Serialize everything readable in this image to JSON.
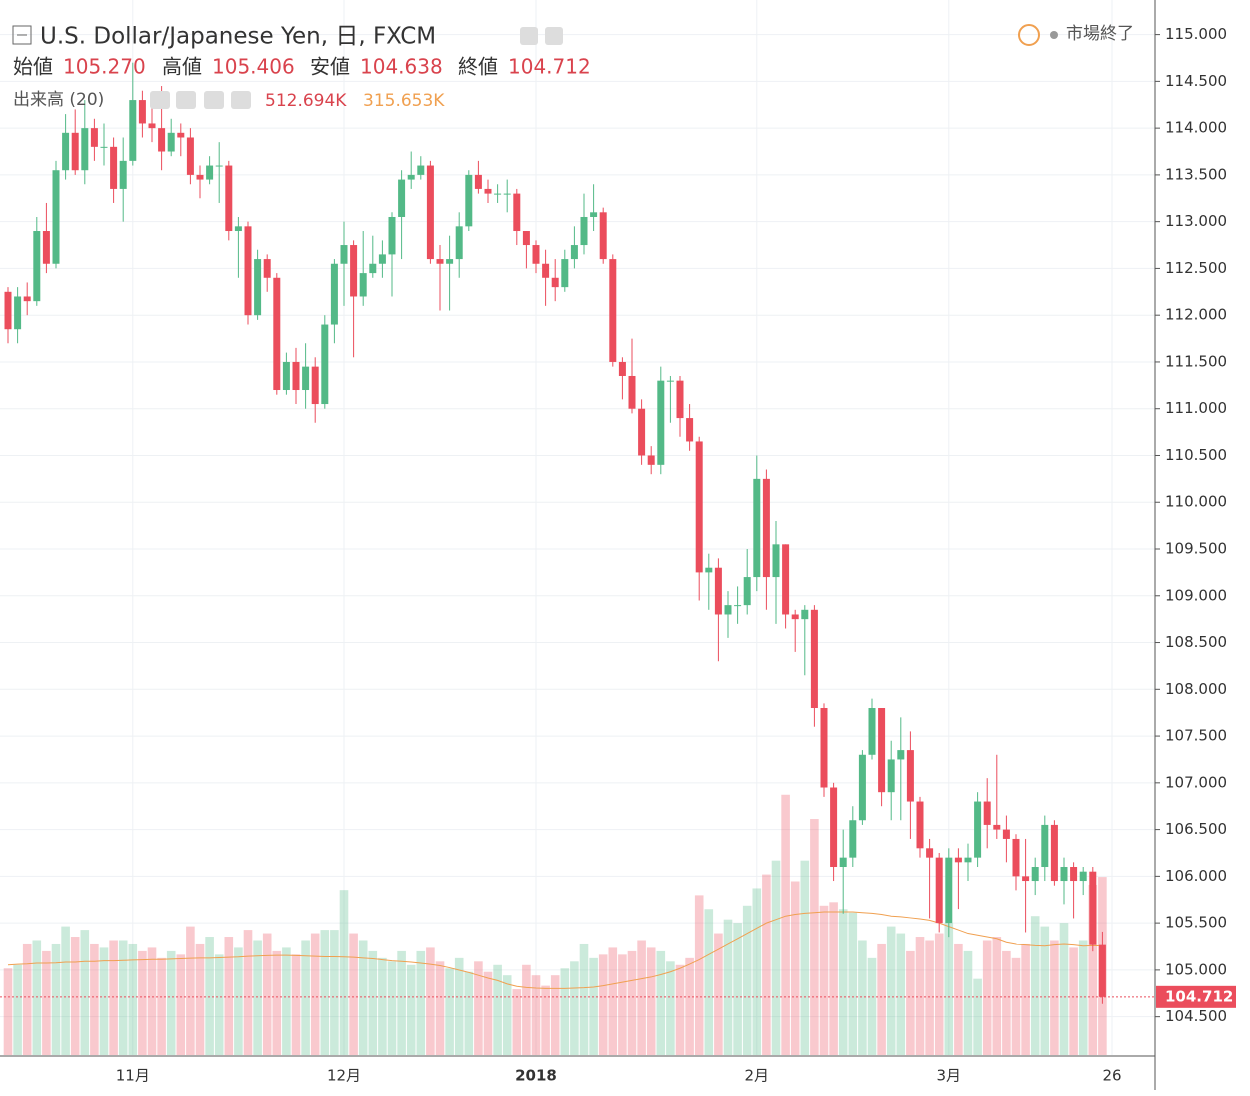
{
  "chart_data": {
    "type": "candlestick",
    "title": "U.S. Dollar/Japanese Yen, 日, FXCM",
    "status": "市場終了",
    "categories": [
      null,
      null,
      null,
      null,
      null,
      null,
      null,
      null,
      null,
      null,
      null,
      null,
      null,
      "11月",
      null,
      null,
      null,
      null,
      null,
      null,
      null,
      null,
      null,
      null,
      null,
      null,
      null,
      null,
      null,
      null,
      null,
      null,
      null,
      null,
      null,
      "12月",
      null,
      null,
      null,
      null,
      null,
      null,
      null,
      null,
      null,
      null,
      null,
      null,
      null,
      null,
      null,
      null,
      null,
      null,
      null,
      "2018",
      null,
      null,
      null,
      null,
      null,
      null,
      null,
      null,
      null,
      null,
      null,
      null,
      null,
      null,
      null,
      null,
      null,
      null,
      null,
      null,
      null,
      null,
      "2月",
      null,
      null,
      null,
      null,
      null,
      null,
      null,
      null,
      null,
      null,
      null,
      null,
      null,
      null,
      null,
      null,
      null,
      null,
      null,
      "3月",
      null,
      null,
      null,
      null,
      null,
      null,
      null,
      null,
      null,
      null,
      null,
      null,
      null,
      null,
      null,
      null,
      "26"
    ],
    "open": [
      112.25,
      111.85,
      112.2,
      112.15,
      112.9,
      112.55,
      113.55,
      113.95,
      113.55,
      114.0,
      113.8,
      113.8,
      113.35,
      113.65,
      114.3,
      114.05,
      114.0,
      113.75,
      113.95,
      113.9,
      113.5,
      113.45,
      113.6,
      113.6,
      112.9,
      112.95,
      112.0,
      112.6,
      112.4,
      111.2,
      111.5,
      111.2,
      111.45,
      111.05,
      111.9,
      112.55,
      112.75,
      112.2,
      112.45,
      112.55,
      112.65,
      113.05,
      113.45,
      113.5,
      113.6,
      112.6,
      112.55,
      112.6,
      112.95,
      113.5,
      113.35,
      113.3,
      113.3,
      113.3,
      112.9,
      112.75,
      112.55,
      112.4,
      112.3,
      112.6,
      112.75,
      113.05,
      113.1,
      112.6,
      111.5,
      111.35,
      111.0,
      110.5,
      110.4,
      111.3,
      111.3,
      110.9,
      110.65,
      109.25,
      109.3,
      108.8,
      108.9,
      108.9,
      109.2,
      110.25,
      109.2,
      109.55,
      108.8,
      108.75,
      108.85,
      107.8,
      106.95,
      106.1,
      106.2,
      106.6,
      107.3,
      107.8,
      106.9,
      107.25,
      107.35,
      106.8,
      106.3,
      106.2,
      105.5,
      106.2,
      106.15,
      106.2,
      106.8,
      106.55,
      106.5,
      106.4,
      106.0,
      105.95,
      106.1,
      106.55,
      105.95,
      106.1,
      105.95,
      106.05,
      105.27,
      null
    ],
    "high": [
      112.3,
      112.3,
      112.35,
      113.05,
      113.2,
      113.65,
      114.15,
      114.2,
      114.3,
      114.1,
      114.05,
      113.9,
      113.9,
      114.7,
      114.4,
      114.25,
      114.45,
      114.1,
      114.05,
      114.0,
      113.6,
      113.7,
      113.85,
      113.65,
      113.05,
      113.0,
      112.7,
      112.65,
      112.45,
      111.6,
      111.65,
      111.7,
      111.55,
      112.0,
      112.6,
      113.0,
      112.8,
      112.9,
      112.85,
      112.8,
      113.1,
      113.55,
      113.75,
      113.7,
      113.65,
      112.75,
      112.85,
      113.1,
      113.55,
      113.65,
      113.45,
      113.4,
      113.45,
      113.35,
      112.9,
      112.8,
      112.7,
      112.6,
      112.7,
      112.95,
      113.3,
      113.4,
      113.15,
      112.65,
      111.55,
      111.75,
      111.1,
      110.6,
      111.45,
      111.35,
      111.35,
      111.05,
      110.7,
      109.45,
      109.4,
      109.05,
      109.1,
      109.5,
      110.5,
      110.35,
      109.8,
      109.55,
      108.85,
      108.9,
      108.9,
      107.85,
      107.0,
      106.5,
      106.75,
      107.35,
      107.9,
      107.8,
      107.45,
      107.7,
      107.55,
      106.85,
      106.4,
      106.25,
      106.3,
      106.3,
      106.35,
      106.9,
      107.05,
      107.3,
      106.65,
      106.45,
      106.4,
      106.2,
      106.65,
      106.6,
      106.2,
      106.15,
      106.1,
      106.1,
      105.406,
      null
    ],
    "low": [
      111.7,
      111.7,
      112.0,
      112.1,
      112.45,
      112.5,
      113.45,
      113.5,
      113.4,
      113.65,
      113.6,
      113.2,
      113.0,
      113.6,
      113.9,
      113.85,
      113.55,
      113.7,
      113.7,
      113.4,
      113.25,
      113.4,
      113.2,
      112.8,
      112.4,
      111.9,
      111.95,
      112.25,
      111.15,
      111.15,
      111.05,
      111.0,
      110.85,
      111.0,
      111.7,
      112.1,
      111.55,
      112.1,
      112.4,
      112.4,
      112.2,
      112.6,
      113.35,
      113.45,
      112.55,
      112.05,
      112.05,
      112.4,
      112.9,
      113.3,
      113.2,
      113.2,
      113.1,
      112.75,
      112.5,
      112.45,
      112.1,
      112.15,
      112.25,
      112.5,
      112.65,
      112.9,
      112.55,
      111.45,
      111.1,
      110.95,
      110.4,
      110.3,
      110.3,
      110.85,
      110.7,
      110.55,
      108.95,
      108.85,
      108.3,
      108.55,
      108.7,
      108.8,
      109.05,
      108.85,
      108.7,
      108.65,
      108.4,
      108.15,
      107.6,
      106.85,
      105.95,
      105.6,
      106.1,
      106.55,
      107.25,
      106.75,
      106.6,
      106.6,
      106.4,
      106.2,
      105.55,
      105.4,
      105.35,
      105.65,
      105.95,
      106.1,
      106.3,
      106.4,
      106.15,
      105.85,
      105.4,
      105.8,
      105.95,
      105.9,
      105.7,
      105.55,
      105.8,
      105.2,
      104.638,
      null
    ],
    "close": [
      111.85,
      112.2,
      112.15,
      112.9,
      112.55,
      113.55,
      113.95,
      113.55,
      114.0,
      113.8,
      113.8,
      113.35,
      113.65,
      114.3,
      114.05,
      114.0,
      113.75,
      113.95,
      113.9,
      113.5,
      113.45,
      113.6,
      113.6,
      112.9,
      112.95,
      112.0,
      112.6,
      112.4,
      111.2,
      111.5,
      111.2,
      111.45,
      111.05,
      111.9,
      112.55,
      112.75,
      112.2,
      112.45,
      112.55,
      112.65,
      113.05,
      113.45,
      113.5,
      113.6,
      112.6,
      112.55,
      112.6,
      112.95,
      113.5,
      113.35,
      113.3,
      113.3,
      113.3,
      112.9,
      112.75,
      112.55,
      112.4,
      112.3,
      112.6,
      112.75,
      113.05,
      113.1,
      112.6,
      111.5,
      111.35,
      111.0,
      110.5,
      110.4,
      111.3,
      111.3,
      110.9,
      110.65,
      109.25,
      109.3,
      108.8,
      108.9,
      108.9,
      109.2,
      110.25,
      109.2,
      109.55,
      108.8,
      108.75,
      108.85,
      107.8,
      106.95,
      106.1,
      106.2,
      106.6,
      107.3,
      107.8,
      106.9,
      107.25,
      107.35,
      106.8,
      106.3,
      106.2,
      105.5,
      106.2,
      106.15,
      106.2,
      106.8,
      106.55,
      106.5,
      106.4,
      106.0,
      105.95,
      106.1,
      106.55,
      105.95,
      106.1,
      105.95,
      106.05,
      105.27,
      104.712,
      null
    ],
    "up_color": "#53b987",
    "down_color": "#eb4d5c",
    "ylim": [
      104.09,
      115.37
    ],
    "yticks": [
      {
        "value": 104.5,
        "label": "104.500"
      },
      {
        "value": 105,
        "label": "105.000"
      },
      {
        "value": 105.5,
        "label": "105.500"
      },
      {
        "value": 106,
        "label": "106.000"
      },
      {
        "value": 106.5,
        "label": "106.500"
      },
      {
        "value": 107,
        "label": "107.000"
      },
      {
        "value": 107.5,
        "label": "107.500"
      },
      {
        "value": 108,
        "label": "108.000"
      },
      {
        "value": 108.5,
        "label": "108.500"
      },
      {
        "value": 109,
        "label": "109.000"
      },
      {
        "value": 109.5,
        "label": "109.500"
      },
      {
        "value": 110,
        "label": "110.000"
      },
      {
        "value": 110.5,
        "label": "110.500"
      },
      {
        "value": 111,
        "label": "111.000"
      },
      {
        "value": 111.5,
        "label": "111.500"
      },
      {
        "value": 112,
        "label": "112.000"
      },
      {
        "value": 112.5,
        "label": "112.500"
      },
      {
        "value": 113,
        "label": "113.000"
      },
      {
        "value": 113.5,
        "label": "113.500"
      },
      {
        "value": 114,
        "label": "114.000"
      },
      {
        "value": 114.5,
        "label": "114.500"
      },
      {
        "value": 115,
        "label": "115.000"
      }
    ],
    "grid": true,
    "ohlc_legend": [
      {
        "name": "始値",
        "value": 105.27,
        "label": "105.270"
      },
      {
        "name": "高値",
        "value": 105.406,
        "label": "105.406"
      },
      {
        "name": "安値",
        "value": 104.638,
        "label": "104.638"
      },
      {
        "name": "終値",
        "value": 104.712,
        "label": "104.712"
      }
    ],
    "last_price": {
      "value": 104.712,
      "label": "104.712"
    },
    "volume": {
      "name": "出来高 (20)",
      "values": [
        250,
        260,
        320,
        330,
        300,
        320,
        370,
        340,
        360,
        320,
        310,
        330,
        330,
        320,
        300,
        310,
        280,
        300,
        290,
        370,
        320,
        340,
        290,
        340,
        310,
        360,
        330,
        350,
        300,
        310,
        290,
        330,
        350,
        360,
        360,
        475,
        350,
        330,
        300,
        280,
        270,
        300,
        260,
        300,
        310,
        270,
        250,
        280,
        240,
        270,
        240,
        260,
        230,
        190,
        260,
        230,
        200,
        230,
        250,
        270,
        320,
        280,
        290,
        310,
        290,
        300,
        330,
        310,
        300,
        270,
        260,
        280,
        460,
        420,
        350,
        390,
        380,
        430,
        480,
        520,
        560,
        750,
        500,
        560,
        680,
        430,
        440,
        420,
        410,
        330,
        280,
        320,
        370,
        350,
        300,
        340,
        330,
        350,
        380,
        320,
        300,
        220,
        330,
        340,
        300,
        280,
        320,
        400,
        370,
        330,
        380,
        310,
        330,
        490,
        512.694,
        null
      ],
      "last_label": "512.694K",
      "ma_values": [
        260,
        262,
        263,
        265,
        265,
        266,
        268,
        268,
        270,
        270,
        272,
        272,
        273,
        274,
        275,
        276,
        276,
        277,
        278,
        279,
        280,
        280,
        281,
        282,
        283,
        285,
        286,
        287,
        288,
        288,
        287,
        286,
        285,
        284,
        284,
        283,
        282,
        280,
        278,
        275,
        272,
        270,
        268,
        265,
        262,
        258,
        252,
        245,
        238,
        230,
        222,
        215,
        205,
        198,
        195,
        193,
        192,
        192,
        192,
        193,
        194,
        196,
        200,
        205,
        210,
        215,
        220,
        225,
        232,
        240,
        250,
        262,
        275,
        290,
        305,
        320,
        335,
        350,
        365,
        380,
        390,
        400,
        405,
        408,
        410,
        412,
        412,
        412,
        412,
        410,
        408,
        405,
        400,
        398,
        395,
        392,
        388,
        380,
        370,
        360,
        350,
        345,
        340,
        335,
        325,
        320,
        318,
        316,
        315,
        318,
        320,
        318,
        315,
        316,
        315.653,
        null
      ],
      "ma_last_label": "315.653K",
      "ma_color": "#f0a050"
    }
  }
}
